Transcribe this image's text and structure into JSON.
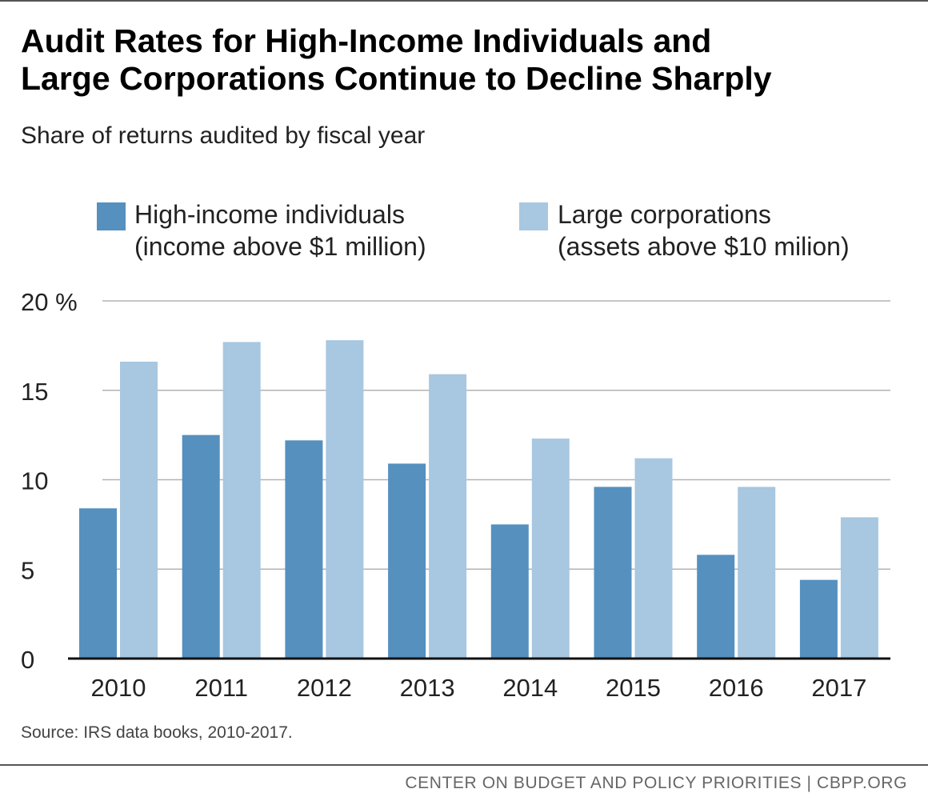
{
  "title_line1": "Audit Rates for High-Income Individuals and",
  "title_line2": "Large Corporations Continue to Decline Sharply",
  "subtitle": "Share of returns audited by fiscal year",
  "legend": {
    "series1_line1": "High-income individuals",
    "series1_line2": "(income above $1 million)",
    "series2_line1": "Large corporations",
    "series2_line2": "(assets above $10 milion)"
  },
  "source": "Source: IRS data books, 2010-2017.",
  "footer": "CENTER ON BUDGET AND POLICY PRIORITIES | CBPP.ORG",
  "colors": {
    "series1": "#5590bf",
    "series2": "#a8c7e0",
    "grid": "#b3b3b3",
    "axis": "#111111"
  },
  "chart_data": {
    "type": "bar",
    "title": "Audit Rates for High-Income Individuals and Large Corporations Continue to Decline Sharply",
    "subtitle": "Share of returns audited by fiscal year",
    "categories": [
      "2010",
      "2011",
      "2012",
      "2013",
      "2014",
      "2015",
      "2016",
      "2017"
    ],
    "series": [
      {
        "name": "High-income individuals (income above $1 million)",
        "values": [
          8.4,
          12.5,
          12.2,
          10.9,
          7.5,
          9.6,
          5.8,
          4.4
        ]
      },
      {
        "name": "Large corporations (assets above $10 milion)",
        "values": [
          16.6,
          17.7,
          17.8,
          15.9,
          12.3,
          11.2,
          9.6,
          7.9
        ]
      }
    ],
    "yticks": [
      0,
      5,
      10,
      15,
      20
    ],
    "ytick_labels": [
      "0",
      "5",
      "10",
      "15",
      "20 %"
    ],
    "ylim": [
      0,
      20
    ],
    "xlabel": "",
    "ylabel": "",
    "grid": true,
    "legend_position": "top"
  }
}
